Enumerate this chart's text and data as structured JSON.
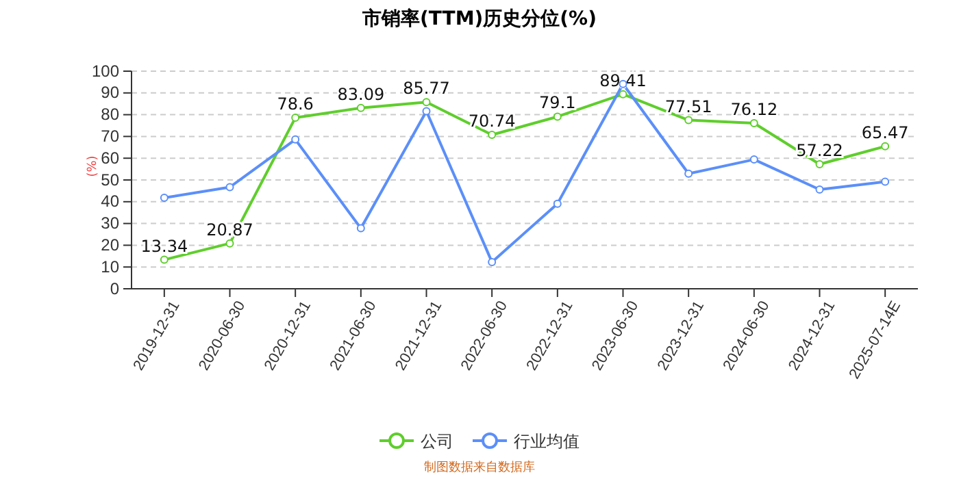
{
  "chart_data": {
    "type": "line",
    "title": "市销率(TTM)历史分位(%)",
    "ylabel": "(%)",
    "categories": [
      "2019-12-31",
      "2020-06-30",
      "2020-12-31",
      "2021-06-30",
      "2021-12-31",
      "2022-06-30",
      "2022-12-31",
      "2023-06-30",
      "2023-12-31",
      "2024-06-30",
      "2024-12-31",
      "2025-07-14E"
    ],
    "series": [
      {
        "name": "公司",
        "color": "#5fce2c",
        "values": [
          13.34,
          20.87,
          78.6,
          83.09,
          85.77,
          70.74,
          79.1,
          89.41,
          77.51,
          76.12,
          57.22,
          65.47
        ],
        "value_labels": [
          "13.34",
          "20.87",
          "78.6",
          "83.09",
          "85.77",
          "70.74",
          "79.1",
          "89.41",
          "77.51",
          "76.12",
          "57.22",
          "65.47"
        ]
      },
      {
        "name": "行业均值",
        "color": "#5b8ff9",
        "values": [
          41.8,
          46.7,
          68.6,
          27.8,
          81.6,
          12.3,
          39.1,
          94.1,
          52.9,
          59.4,
          45.6,
          49.2
        ]
      }
    ],
    "ylim": [
      0,
      100
    ],
    "yticks": [
      0,
      10,
      20,
      30,
      40,
      50,
      60,
      70,
      80,
      90,
      100
    ],
    "grid": "y",
    "legend": "bottom",
    "marker": "circle",
    "line_style": "solid",
    "annotations": [
      "制图数据来自数据库"
    ]
  }
}
